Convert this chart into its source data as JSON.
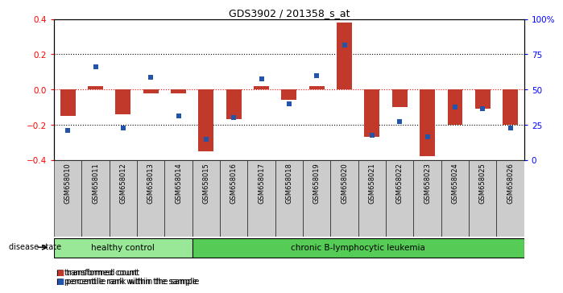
{
  "title": "GDS3902 / 201358_s_at",
  "samples": [
    "GSM658010",
    "GSM658011",
    "GSM658012",
    "GSM658013",
    "GSM658014",
    "GSM658015",
    "GSM658016",
    "GSM658017",
    "GSM658018",
    "GSM658019",
    "GSM658020",
    "GSM658021",
    "GSM658022",
    "GSM658023",
    "GSM658024",
    "GSM658025",
    "GSM658026"
  ],
  "red_values": [
    -0.15,
    0.02,
    -0.14,
    -0.02,
    -0.02,
    -0.35,
    -0.17,
    0.02,
    -0.06,
    0.02,
    0.38,
    -0.27,
    -0.1,
    -0.38,
    -0.2,
    -0.11,
    -0.2
  ],
  "blue_values": [
    -0.23,
    0.13,
    -0.22,
    0.07,
    -0.15,
    -0.28,
    -0.16,
    0.06,
    -0.08,
    0.08,
    0.25,
    -0.26,
    -0.18,
    -0.27,
    -0.1,
    -0.11,
    -0.22
  ],
  "healthy_count": 5,
  "leukemia_count": 12,
  "healthy_label": "healthy control",
  "leukemia_label": "chronic B-lymphocytic leukemia",
  "disease_state_label": "disease state",
  "legend_red": "transformed count",
  "legend_blue": "percentile rank within the sample",
  "ylim_left": [
    -0.4,
    0.4
  ],
  "ylim_right": [
    0,
    100
  ],
  "yticks_left": [
    -0.4,
    -0.2,
    0.0,
    0.2,
    0.4
  ],
  "yticks_right": [
    0,
    25,
    50,
    75,
    100
  ],
  "ytick_right_labels": [
    "0",
    "25",
    "50",
    "75",
    "100%"
  ],
  "bar_color": "#C0392B",
  "blue_color": "#2255AA",
  "healthy_bg": "#98E898",
  "leukemia_bg": "#55CC55",
  "tick_label_bg": "#CCCCCC",
  "bar_width": 0.55,
  "blue_marker_size": 5
}
